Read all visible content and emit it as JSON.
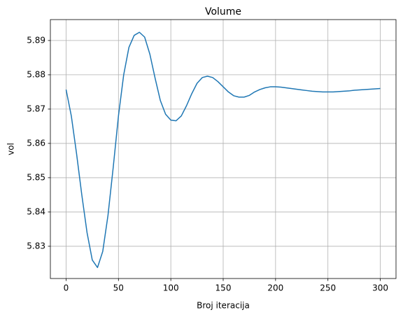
{
  "chart_data": {
    "type": "line",
    "title": "Volume",
    "x_label": "Broj iteracija",
    "y_label": "vol",
    "x": [
      0,
      5,
      10,
      15,
      20,
      25,
      30,
      35,
      40,
      45,
      50,
      55,
      60,
      65,
      70,
      75,
      80,
      85,
      90,
      95,
      100,
      105,
      110,
      115,
      120,
      125,
      130,
      135,
      140,
      145,
      150,
      155,
      160,
      165,
      170,
      175,
      180,
      185,
      190,
      195,
      200,
      205,
      210,
      215,
      220,
      225,
      230,
      235,
      240,
      245,
      250,
      255,
      260,
      265,
      270,
      275,
      280,
      285,
      290,
      295,
      300
    ],
    "series": [
      {
        "name": "vol",
        "color": "#1f77b4",
        "values": [
          5.8757,
          5.868,
          5.857,
          5.845,
          5.834,
          5.826,
          5.8238,
          5.8285,
          5.839,
          5.853,
          5.868,
          5.88,
          5.888,
          5.8915,
          5.8924,
          5.891,
          5.886,
          5.879,
          5.8725,
          5.8685,
          5.8668,
          5.8666,
          5.868,
          5.871,
          5.8745,
          5.8775,
          5.8792,
          5.8796,
          5.8792,
          5.878,
          5.8765,
          5.875,
          5.8739,
          5.8735,
          5.8735,
          5.874,
          5.875,
          5.8757,
          5.8762,
          5.8765,
          5.8765,
          5.8764,
          5.8762,
          5.876,
          5.8758,
          5.8756,
          5.8754,
          5.8752,
          5.8751,
          5.875,
          5.875,
          5.875,
          5.8751,
          5.8752,
          5.8753,
          5.8755,
          5.8756,
          5.8757,
          5.8758,
          5.8759,
          5.876
        ]
      }
    ],
    "xlim": [
      -15,
      315
    ],
    "xticks": [
      0,
      50,
      100,
      150,
      200,
      250,
      300
    ],
    "ylim": [
      5.8206,
      5.8961
    ],
    "yticks": [
      5.83,
      5.84,
      5.85,
      5.86,
      5.87,
      5.88,
      5.89
    ],
    "grid": true
  }
}
